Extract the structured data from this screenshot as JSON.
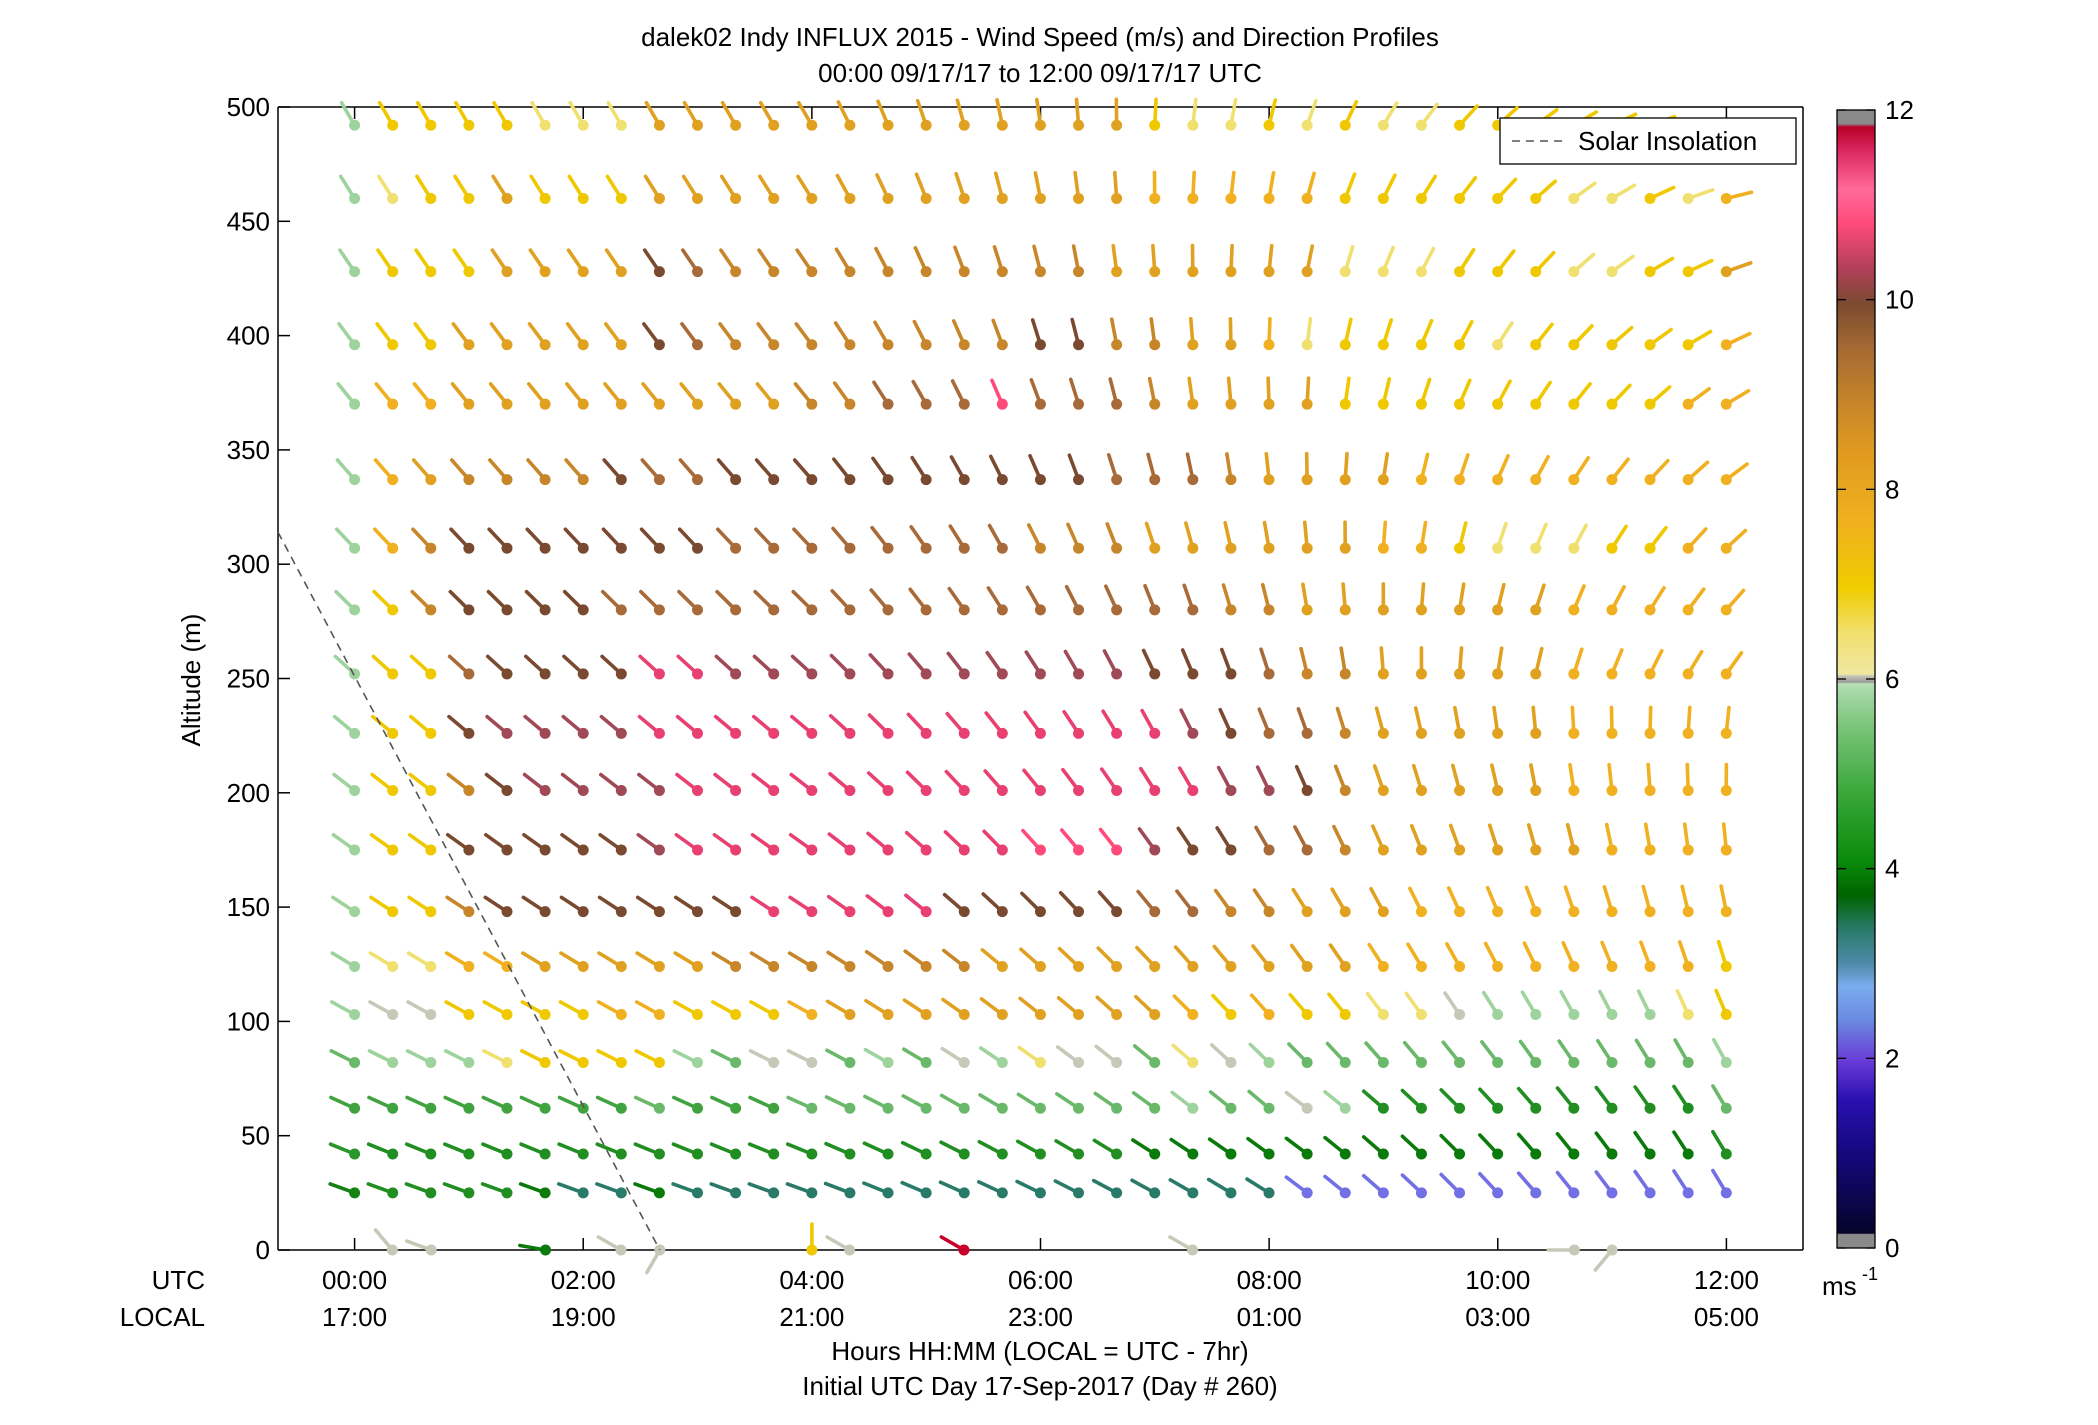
{
  "chart_data": {
    "type": "scatter",
    "title": "dalek02 Indy INFLUX 2015 - Wind Speed (m/s) and Direction Profiles",
    "subtitle": "00:00 09/17/17 to 12:00 09/17/17  UTC",
    "ylabel": "Altitude (m)",
    "ylim": [
      0,
      500
    ],
    "yticks": [
      "0",
      "50",
      "100",
      "150",
      "200",
      "250",
      "300",
      "350",
      "400",
      "450",
      "500"
    ],
    "xlim": [
      -0.67,
      12.67
    ],
    "utc_row_label": "UTC",
    "local_row_label": "LOCAL",
    "utc_ticks": [
      "00:00",
      "02:00",
      "04:00",
      "06:00",
      "08:00",
      "10:00",
      "12:00"
    ],
    "local_ticks": [
      "17:00",
      "19:00",
      "21:00",
      "23:00",
      "01:00",
      "03:00",
      "05:00"
    ],
    "xlabel": "Hours HH:MM  (LOCAL = UTC - 7hr)",
    "xlabel2": "Initial UTC Day 17-Sep-2017 (Day # 260)",
    "legend": {
      "label": "Solar Insolation",
      "placement": "top-right"
    },
    "solar_insolation_line": [
      [
        -0.67,
        314
      ],
      [
        2.67,
        0
      ]
    ],
    "colorbar": {
      "range": [
        0,
        12
      ],
      "ticks": [
        "0",
        "2",
        "4",
        "6",
        "8",
        "10",
        "12"
      ],
      "unit": "ms",
      "unit_exponent": "-1"
    },
    "time_step_hours": 0.3333,
    "altitudes": [
      25,
      42,
      62,
      82,
      103,
      124,
      148,
      175,
      201,
      226,
      252,
      280,
      307,
      337,
      370,
      396,
      428,
      460,
      492
    ],
    "speed_grid_note": "rows = altitudes (bottom to top), columns = 00:00, 00:20, ... 12:00 UTC",
    "speed_rows": [
      "3.7 4 4 4 4 3.5 3 3 3.5 3 3 3 3 3 3 3 3 3 3 3 3 3 3 3 3 2 2 2 2 2 2 2 2 2 2 2 2",
      "4.2 4 4 4 4 4 4 4 4 4 4 4 4 4 4 4 4 4 4 4 4 3.5 3.5 3.5 3.5 3.5 3.5 3.5 3.5 3.5 3.5 3.5 3.5 3.5 3.5 3.5 4",
      "4.5 4.5 4.5 4.5 4.5 4.5 4.5 4.5 5 4.5 4.5 4.5 5 5 5 5 5 5 5 5 5 5 5.5 5 5 6 5.5 4 4 4 4 4 4 4 4 4 5",
      "5 5.5 5.5 5.5 6.5 7 7 7 7 5.5 5 6 6 5 5.5 5 6 5.5 6.5 6 6 5 6.5 6 5.5 5 5 5 5 5 5 5 5 5 5 5 5.5",
      "5.5 6 6 7 7 7 7 7.5 7.5 7 7 7 7.5 8 8 8 8 8 8 8 8 8 7.5 7 7.5 7 7 6.5 6.5 6 5.5 5.5 5.5 5.5 5.5 6.5 7",
      "5.5 6.5 6.5 7.5 7.5 8 8 8 8 8 8.5 8.5 8.5 8.5 8.5 8.5 8.5 8 8 8 8 8 8 8 8 8 8 7.5 7.5 7.5 7.5 7.5 7.5 7.5 7.5 7.5 7",
      "5.5 7 7 8.5 9.5 9.5 9.5 9.5 9.5 9.5 9.5 10.5 10.5 10.5 10.5 10.5 9.5 9.5 9.5 9.5 9.5 9 9 8.5 8.5 8 8 8 7.5 7.5 7.5 7.5 7.5 7.5 7.5 7.5 7.5",
      "5.5 7 7 9.5 9.5 9.5 9.5 9.5 10 10.5 10.5 10.5 10.5 10.5 10.5 10.5 10.5 10.5 11 11 11 10 9.5 9.5 9 9 8.5 8 8 8 8 8 8 7.5 7.5 7.5 7.5",
      "5.5 7 7 8.5 9.5 10 10 10 10 10.5 10.5 10.5 10.5 10.5 10.5 10.5 10.5 10.5 10.5 10.5 10.5 10.5 10.5 10 10 9.5 8.5 8 8 8 8 8 7.5 7.5 7.5 7.5 7.5",
      "5.5 7 7 9.5 10 10 10 10 10.5 10.5 10.5 10.5 10.5 10.5 10.5 10.5 10.5 10.5 10.5 10.5 10.5 10.5 10 9.5 9 9 8.5 8 8 8 8 8 7.5 7.5 7.5 7.5 7.5",
      "5.5 7 7 9 9.5 9.5 9.5 9.5 10.5 10.5 10 10 10 10 10 10 10 10 10 10 10 9.5 9.5 9.5 9 8.5 8.5 8 8 8 8 8 7.5 7.5 7.5 7.5 7.5",
      "5.5 7 8.5 9.5 9.5 9.5 9.5 9 9 9 9 9 9 9 9 9 9 9 9 9 9 9 9 8.5 8.5 8 8 8 8 8 8 8 7.5 7.5 7.5 7.5 7.5",
      "5.5 7.5 8.5 9.5 9.5 9.5 9.5 9.5 9.5 9.5 9 9 9 9 9 9 9 9 8.5 8.5 8.5 8 8 8 8 8 8 7.5 7.5 7 6.5 6.5 6.5 7 7 7.5 7.5",
      "5.5 7.5 8 8.5 8.5 8.5 8.5 9.5 9 9 9.5 9.5 9.5 9.5 9.5 9.5 9.5 9.5 9.5 9.5 9 9 9 8.5 8 8 8 8 7.5 7.5 7.5 7.5 7.5 7.5 7.5 7.5 7.5",
      "5.5 7.5 7.5 8 8 8 8 8 8 8 8 8 8.5 8.5 9 9 9 11 9 9 9 8.5 8 8 8 8 7 7 7 7 7 7 7 7 7 7.5 7.5",
      "5.5 7 7 8 8 8 8 8 9.5 9 8.5 8.5 8.5 8.5 8.5 8.5 8.5 8.5 9.5 9.5 8.5 8.5 8 8 7.5 6.5 7 7 7 7 6.5 7 7 7 7 7 7.5",
      "5.5 7 7 7 8 8 8 8 9.5 9 8.5 8.5 8.5 8.5 8.5 8.5 8.5 8.5 8.5 8.5 8 8 8 8 8 8 6.5 6.5 6.5 7 7 7 6.5 6.5 7 7 8",
      "5.5 6.5 7 7 8 7 7 7 8 8 8 8 8 8 8 8 8 8 8 8 8 7.5 7.5 7.5 7.5 7.5 7 7 7 7 7 7 6.5 6.5 7 6.5 7.5",
      "5.5 7 7 7 7 6.5 6.5 6.5 8 8 8 8 8 8 8 8 8 8 8 8 8 7 6.5 6.5 7 6.5 7 6.5 6.5 7 7 7 7 7 7 7 7"
    ],
    "direction_note": "arrow heading by row (bottom to top): low rows point WNW/W, mid rows rotate through NW to N, upper rows point NW then veer to NE/E after 08:00 UTC",
    "surface_samples": [
      {
        "t": 0.33,
        "alt": 0,
        "speed": 6,
        "dir": 320
      },
      {
        "t": 0.67,
        "alt": 0,
        "speed": 6,
        "dir": 290
      },
      {
        "t": 1.67,
        "alt": 0,
        "speed": 3.5,
        "dir": 280
      },
      {
        "t": 2.33,
        "alt": 0,
        "speed": 6,
        "dir": 300
      },
      {
        "t": 2.67,
        "alt": 0,
        "speed": 6,
        "dir": 210
      },
      {
        "t": 4.0,
        "alt": 0,
        "speed": 7,
        "dir": 0
      },
      {
        "t": 4.33,
        "alt": 0,
        "speed": 6,
        "dir": 300
      },
      {
        "t": 5.33,
        "alt": 0,
        "speed": 11.5,
        "dir": 300
      },
      {
        "t": 7.33,
        "alt": 0,
        "speed": 6,
        "dir": 300
      },
      {
        "t": 10.67,
        "alt": 0,
        "speed": 6,
        "dir": 270
      },
      {
        "t": 11.0,
        "alt": 0,
        "speed": 6,
        "dir": 220
      }
    ]
  }
}
